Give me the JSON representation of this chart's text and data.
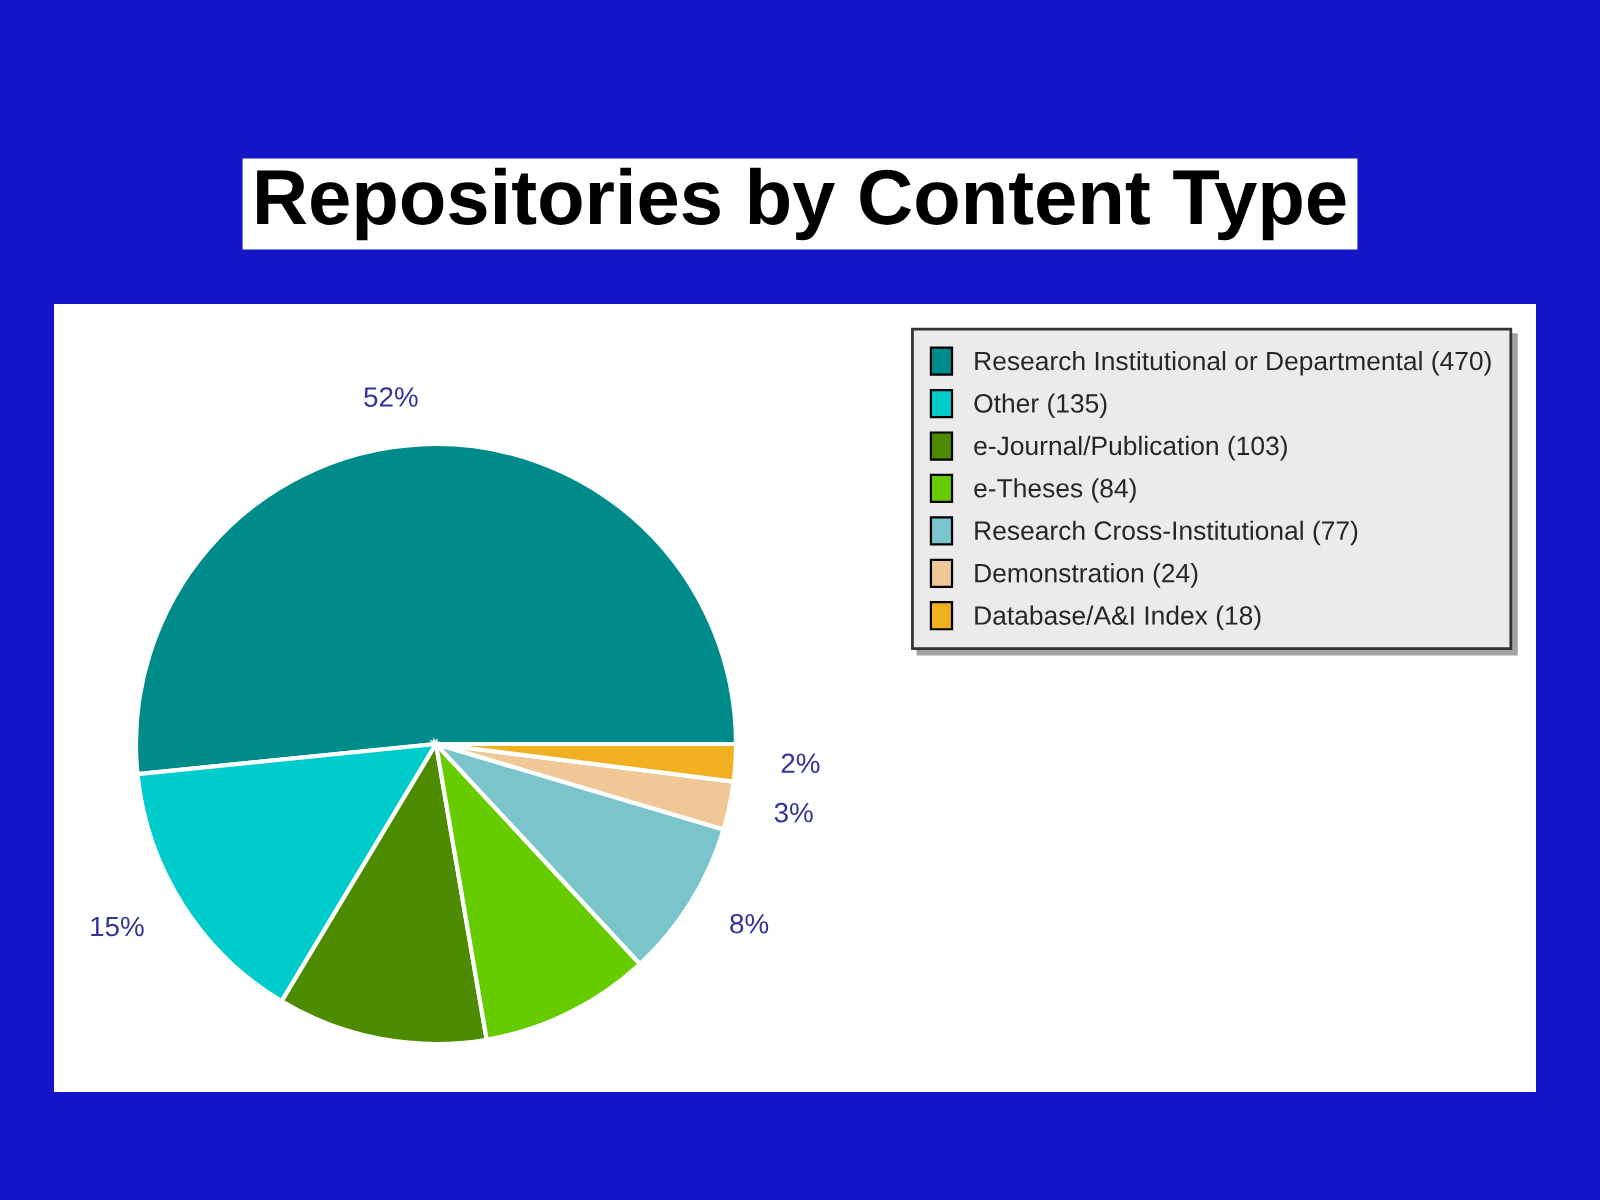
{
  "chart_data": {
    "type": "pie",
    "title": "Repositories by Content Type",
    "categories": [
      "Research Institutional or Departmental (470)",
      "Other (135)",
      "e-Journal/Publication (103)",
      "e-Theses (84)",
      "Research Cross-Institutional (77)",
      "Demonstration (24)",
      "Database/A&I Index (18)"
    ],
    "values": [
      51.6,
      14.8,
      11.3,
      9.2,
      8.5,
      2.6,
      2.0
    ],
    "colors": [
      "#008b8b",
      "#00cccc",
      "#4d8c00",
      "#66cc00",
      "#7ac4cc",
      "#f0c898",
      "#f0b020"
    ],
    "value_labels": [
      "52%",
      "15%",
      null,
      null,
      "8%",
      "3%",
      "2%"
    ],
    "legend": "top right"
  }
}
